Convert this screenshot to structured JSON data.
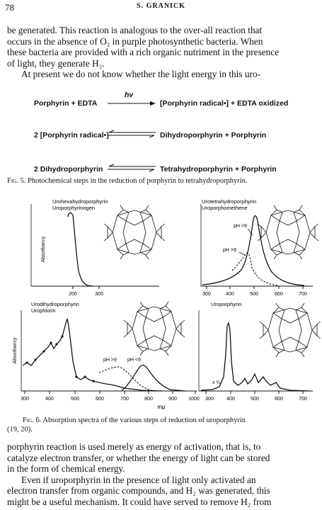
{
  "header": {
    "page_number": "78",
    "author": "S. GRANICK"
  },
  "text_top": {
    "p1_l1": "be generated. This reaction is analogous to the over-all reaction that",
    "p1_l2": "occurs in the absence of O₂ in purple photosynthetic bacteria. When",
    "p1_l3": "these bacteria are provided with a rich organic nutriment in the presence",
    "p1_l4": "of light, they generate H₂.",
    "p2_l1": "At present we do not know whether the light energy in this uro-"
  },
  "scheme": {
    "hv": "hν",
    "r1_left": "Porphyrin + EDTA",
    "r1_right": "[Porphyrin radical•] + EDTA oxidized",
    "r2_left": "2 [Porphyrin radical•]",
    "r2_right": "Dihydroporphyrin + Porphyrin",
    "r3_left": "2 Dihydroporphyrin",
    "r3_right": "Tetrahydroporphyrin + Porphyrin"
  },
  "fig5_caption": {
    "label": "Fig. 5.",
    "text": "Photochemical steps in the reduction of porphyrin to tetrahydroporphyrin."
  },
  "fig6": {
    "panel_tl_title1": "Urohexahydroporphyrin",
    "panel_tl_title2": "Uroporphyrinogen",
    "panel_tr_title1": "Urotetrahydroporphyrin",
    "panel_tr_title2": "Uroporphomethene",
    "panel_bl_title1": "Urodihydroporphyrin",
    "panel_bl_title2": "Urophlorin",
    "panel_br_title1": "Uroporphyrin",
    "ylabel": "Absorbancy",
    "xlabel": "mμ",
    "tl_ticks": [
      "200",
      "300"
    ],
    "tr_ticks": [
      "300",
      "400",
      "500",
      "600",
      "700"
    ],
    "bl_ticks": [
      "300",
      "400",
      "500",
      "600",
      "700",
      "800",
      "900",
      "1000"
    ],
    "br_ticks": [
      "300",
      "400",
      "500",
      "600",
      "700"
    ],
    "tr_ph_low": "pH <9",
    "tr_ph_high": "pH >9",
    "bl_ph_high": "pH >9",
    "bl_ph_low": "pH <9",
    "br_scale": "x ¼"
  },
  "fig6_caption": {
    "label": "Fig. 6.",
    "line1": "Absorption spectra of the various steps of reduction of uroporphyrin",
    "line2": "(19, 20)."
  },
  "text_bottom": {
    "p1_l1": "porphyrin reaction is used merely as energy of activation, that is, to",
    "p1_l2": "catalyze electron transfer, or whether the energy of light can be stored",
    "p1_l3": "in the form of chemical energy.",
    "p2_l1": "Even if uroporphyrin in the presence of light only activated an",
    "p2_l2": "electron transfer from organic compounds, and H₂ was generated, this",
    "p2_l3": "might be a useful mechanism. It could have served to remove H₂ from"
  }
}
